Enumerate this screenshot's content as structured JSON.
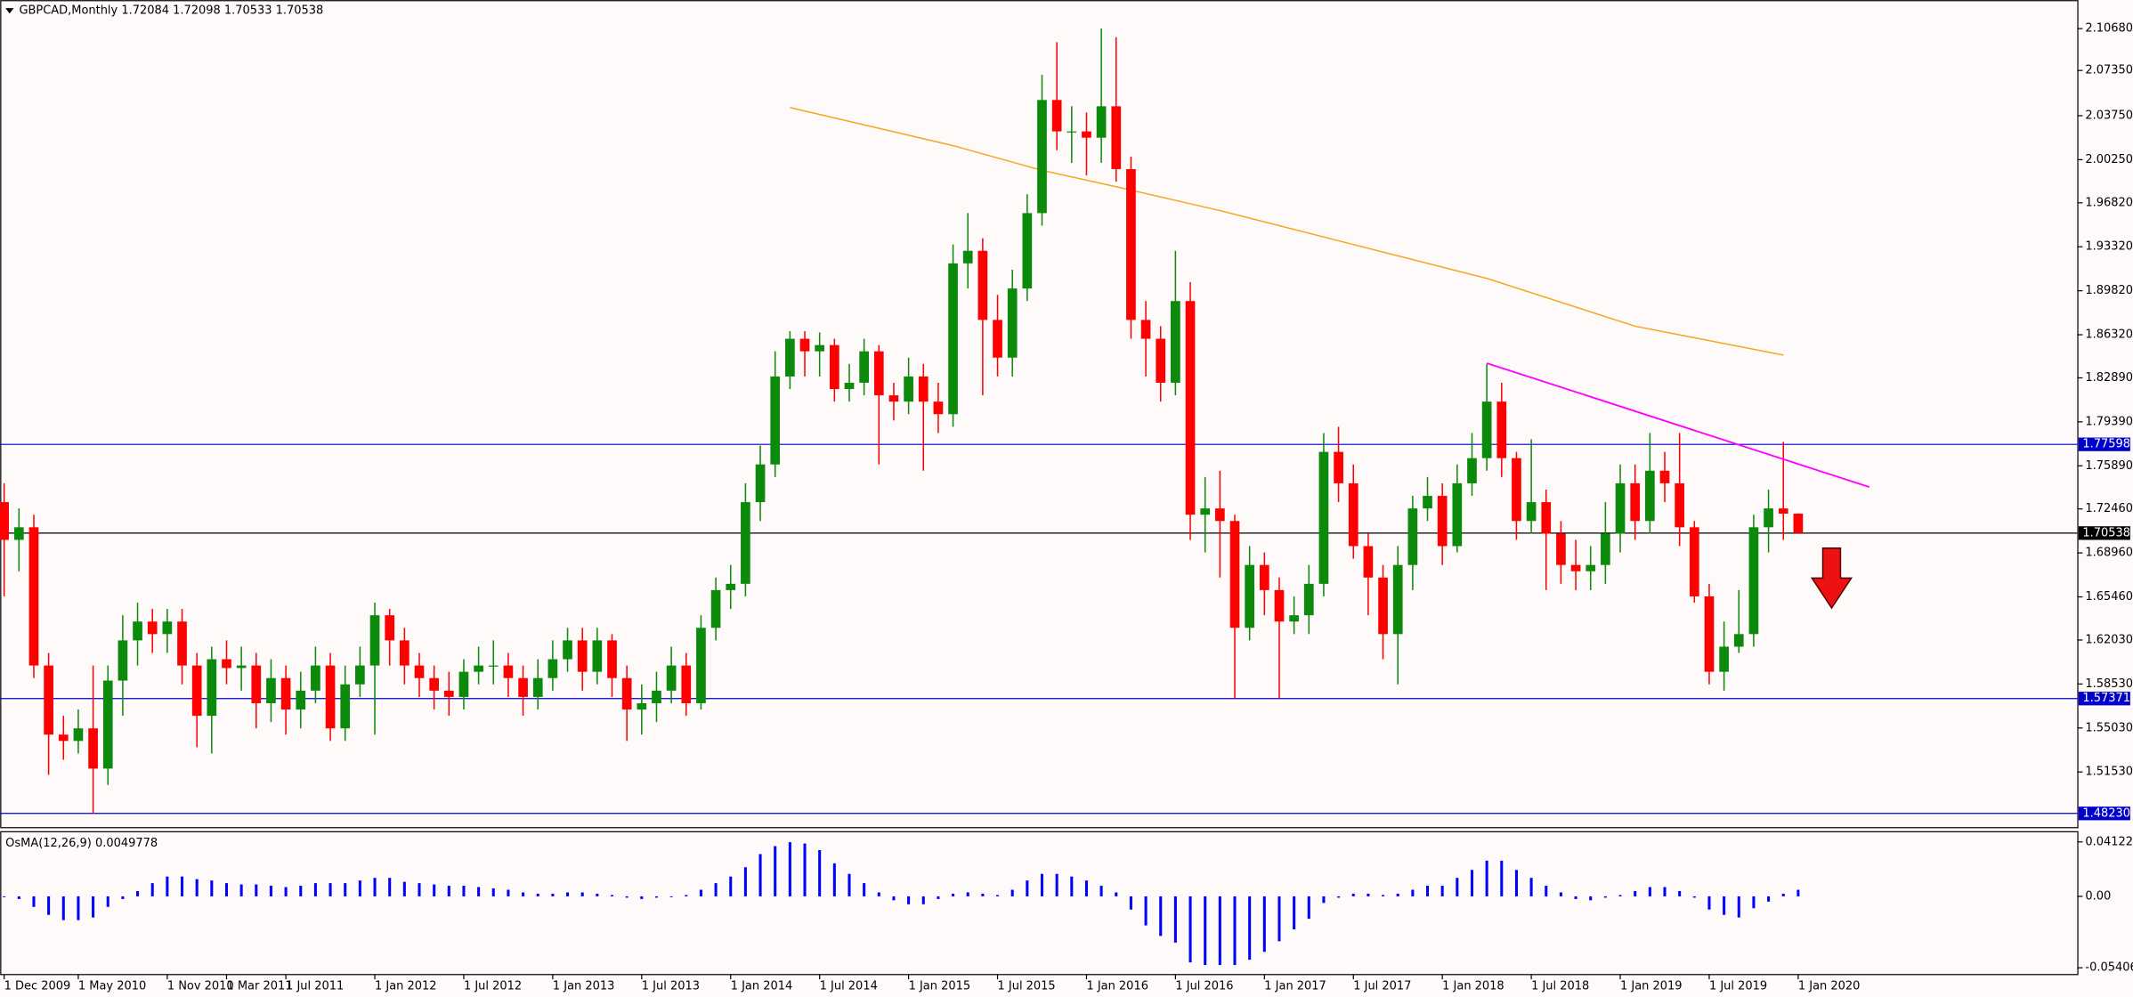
{
  "chart_data": [
    {
      "type": "candlestick",
      "title": "GBPCAD,Monthly 1.72084 1.72098 1.70533 1.70538",
      "up_color": "#0b8a0b",
      "down_color": "#ff0000",
      "categories": [
        "1 Dec 2009",
        null,
        null,
        null,
        null,
        "1 May 2010",
        null,
        null,
        null,
        null,
        null,
        "1 Nov 2010",
        null,
        null,
        null,
        "1 Mar 2011",
        null,
        null,
        null,
        "1 Jul 2011",
        null,
        null,
        null,
        null,
        null,
        "1 Jan 2012",
        null,
        null,
        null,
        null,
        null,
        "1 Jul 2012",
        null,
        null,
        null,
        null,
        null,
        "1 Jan 2013",
        null,
        null,
        null,
        null,
        null,
        "1 Jul 2013",
        null,
        null,
        null,
        null,
        null,
        "1 Jan 2014",
        null,
        null,
        null,
        null,
        null,
        "1 Jul 2014",
        null,
        null,
        null,
        null,
        null,
        "1 Jan 2015",
        null,
        null,
        null,
        null,
        null,
        "1 Jul 2015",
        null,
        null,
        null,
        null,
        null,
        "1 Jan 2016",
        null,
        null,
        null,
        null,
        null,
        "1 Jul 2016",
        null,
        null,
        null,
        null,
        null,
        "1 Jan 2017",
        null,
        null,
        null,
        null,
        null,
        "1 Jul 2017",
        null,
        null,
        null,
        null,
        null,
        "1 Jan 2018",
        null,
        null,
        null,
        null,
        null,
        "1 Jul 2018",
        null,
        null,
        null,
        null,
        null,
        "1 Jan 2019",
        null,
        null,
        null,
        null,
        null,
        "1 Jul 2019",
        null,
        null,
        null,
        null,
        null,
        "1 Jan 2020"
      ],
      "open": [
        1.73,
        1.7,
        1.71,
        1.6,
        1.545,
        1.54,
        1.55,
        1.518,
        1.588,
        1.62,
        1.635,
        1.625,
        1.635,
        1.6,
        1.56,
        1.605,
        1.598,
        1.6,
        1.57,
        1.59,
        1.565,
        1.58,
        1.6,
        1.55,
        1.585,
        1.6,
        1.64,
        1.62,
        1.6,
        1.59,
        1.58,
        1.575,
        1.595,
        1.6,
        1.6,
        1.59,
        1.575,
        1.59,
        1.605,
        1.62,
        1.595,
        1.62,
        1.59,
        1.565,
        1.57,
        1.58,
        1.6,
        1.57,
        1.63,
        1.66,
        1.665,
        1.73,
        1.76,
        1.83,
        1.86,
        1.85,
        1.855,
        1.82,
        1.825,
        1.85,
        1.815,
        1.81,
        1.83,
        1.81,
        1.8,
        1.92,
        1.93,
        1.875,
        1.845,
        1.9,
        1.96,
        2.05,
        2.025,
        2.025,
        2.02,
        2.045,
        1.995,
        1.875,
        1.86,
        1.825,
        1.89,
        1.72,
        1.725,
        1.715,
        1.63,
        1.68,
        1.66,
        1.635,
        1.64,
        1.665,
        1.77,
        1.745,
        1.695,
        1.67,
        1.625,
        1.68,
        1.725,
        1.735,
        1.695,
        1.745,
        1.765,
        1.81,
        1.765,
        1.715,
        1.73,
        1.705,
        1.68,
        1.675,
        1.68,
        1.705,
        1.745,
        1.715,
        1.755,
        1.745,
        1.71,
        1.655,
        1.595,
        1.615,
        1.625,
        1.71,
        1.725,
        1.72084
      ],
      "high": [
        1.745,
        1.725,
        1.72,
        1.61,
        1.56,
        1.565,
        1.6,
        1.6,
        1.64,
        1.65,
        1.645,
        1.645,
        1.645,
        1.61,
        1.615,
        1.62,
        1.615,
        1.61,
        1.605,
        1.6,
        1.595,
        1.615,
        1.61,
        1.6,
        1.615,
        1.65,
        1.645,
        1.63,
        1.61,
        1.6,
        1.595,
        1.605,
        1.615,
        1.62,
        1.61,
        1.6,
        1.605,
        1.62,
        1.63,
        1.63,
        1.63,
        1.625,
        1.6,
        1.585,
        1.595,
        1.615,
        1.61,
        1.64,
        1.67,
        1.68,
        1.745,
        1.775,
        1.85,
        1.866,
        1.866,
        1.865,
        1.86,
        1.84,
        1.86,
        1.855,
        1.825,
        1.845,
        1.84,
        1.825,
        1.935,
        1.96,
        1.94,
        1.895,
        1.915,
        1.975,
        2.07,
        2.096,
        2.045,
        2.04,
        2.1068,
        2.1,
        2.005,
        1.89,
        1.87,
        1.93,
        1.905,
        1.75,
        1.755,
        1.72,
        1.695,
        1.69,
        1.67,
        1.655,
        1.68,
        1.785,
        1.79,
        1.76,
        1.705,
        1.68,
        1.695,
        1.735,
        1.75,
        1.745,
        1.76,
        1.785,
        1.84,
        1.825,
        1.77,
        1.78,
        1.74,
        1.715,
        1.7,
        1.695,
        1.73,
        1.76,
        1.76,
        1.785,
        1.77,
        1.785,
        1.715,
        1.665,
        1.635,
        1.66,
        1.72,
        1.74,
        1.778,
        1.72098
      ],
      "low": [
        1.655,
        1.675,
        1.59,
        1.513,
        1.525,
        1.53,
        1.4823,
        1.505,
        1.56,
        1.6,
        1.61,
        1.61,
        1.585,
        1.535,
        1.53,
        1.585,
        1.58,
        1.55,
        1.555,
        1.545,
        1.55,
        1.57,
        1.54,
        1.54,
        1.575,
        1.545,
        1.6,
        1.585,
        1.575,
        1.565,
        1.56,
        1.565,
        1.585,
        1.585,
        1.575,
        1.56,
        1.565,
        1.58,
        1.595,
        1.58,
        1.585,
        1.575,
        1.54,
        1.545,
        1.555,
        1.57,
        1.56,
        1.565,
        1.62,
        1.645,
        1.655,
        1.715,
        1.75,
        1.82,
        1.83,
        1.83,
        1.81,
        1.81,
        1.815,
        1.76,
        1.795,
        1.8,
        1.755,
        1.785,
        1.79,
        1.9,
        1.815,
        1.83,
        1.83,
        1.89,
        1.95,
        2.01,
        2.0,
        1.99,
        2.0,
        1.985,
        1.86,
        1.83,
        1.81,
        1.815,
        1.7,
        1.69,
        1.67,
        1.5737,
        1.62,
        1.64,
        1.5737,
        1.625,
        1.625,
        1.655,
        1.73,
        1.685,
        1.64,
        1.605,
        1.585,
        1.66,
        1.715,
        1.68,
        1.69,
        1.735,
        1.755,
        1.75,
        1.7,
        1.705,
        1.66,
        1.665,
        1.66,
        1.66,
        1.665,
        1.69,
        1.7,
        1.705,
        1.73,
        1.695,
        1.65,
        1.585,
        1.58,
        1.61,
        1.615,
        1.69,
        1.7,
        1.70533
      ],
      "close": [
        1.7,
        1.71,
        1.6,
        1.545,
        1.54,
        1.55,
        1.518,
        1.588,
        1.62,
        1.635,
        1.625,
        1.635,
        1.6,
        1.56,
        1.605,
        1.598,
        1.6,
        1.57,
        1.59,
        1.565,
        1.58,
        1.6,
        1.55,
        1.585,
        1.6,
        1.64,
        1.62,
        1.6,
        1.59,
        1.58,
        1.575,
        1.595,
        1.6,
        1.6,
        1.59,
        1.575,
        1.59,
        1.605,
        1.62,
        1.595,
        1.62,
        1.59,
        1.565,
        1.57,
        1.58,
        1.6,
        1.57,
        1.63,
        1.66,
        1.665,
        1.73,
        1.76,
        1.83,
        1.86,
        1.85,
        1.855,
        1.82,
        1.825,
        1.85,
        1.815,
        1.81,
        1.83,
        1.81,
        1.8,
        1.92,
        1.93,
        1.875,
        1.845,
        1.9,
        1.96,
        2.05,
        2.025,
        2.025,
        2.02,
        2.045,
        1.995,
        1.875,
        1.86,
        1.825,
        1.89,
        1.72,
        1.725,
        1.715,
        1.63,
        1.68,
        1.66,
        1.635,
        1.64,
        1.665,
        1.77,
        1.745,
        1.695,
        1.67,
        1.625,
        1.68,
        1.725,
        1.735,
        1.695,
        1.745,
        1.765,
        1.81,
        1.765,
        1.715,
        1.73,
        1.705,
        1.68,
        1.675,
        1.68,
        1.705,
        1.745,
        1.715,
        1.755,
        1.745,
        1.71,
        1.655,
        1.595,
        1.615,
        1.625,
        1.71,
        1.725,
        1.72084,
        1.70538
      ],
      "ylim": [
        1.4726,
        2.1274
      ],
      "yticks": [
        {
          "value": 2.1068,
          "label": "2.10680"
        },
        {
          "value": 2.0735,
          "label": "2.07350"
        },
        {
          "value": 2.0375,
          "label": "2.03750"
        },
        {
          "value": 2.0025,
          "label": "2.00250"
        },
        {
          "value": 1.9682,
          "label": "1.96820"
        },
        {
          "value": 1.9332,
          "label": "1.93320"
        },
        {
          "value": 1.8982,
          "label": "1.89820"
        },
        {
          "value": 1.8632,
          "label": "1.86320"
        },
        {
          "value": 1.8289,
          "label": "1.82890"
        },
        {
          "value": 1.7939,
          "label": "1.79390"
        },
        {
          "value": 1.7589,
          "label": "1.75890"
        },
        {
          "value": 1.7246,
          "label": "1.72460"
        },
        {
          "value": 1.6896,
          "label": "1.68960"
        },
        {
          "value": 1.6546,
          "label": "1.65460"
        },
        {
          "value": 1.6203,
          "label": "1.62030"
        },
        {
          "value": 1.5853,
          "label": "1.58530"
        },
        {
          "value": 1.5503,
          "label": "1.55030"
        },
        {
          "value": 1.5153,
          "label": "1.51530"
        }
      ],
      "hlines": [
        {
          "value": 1.77598,
          "label": "1.77598",
          "color": "#0000cd"
        },
        {
          "value": 1.70538,
          "label": "1.70538",
          "color": "#000000"
        },
        {
          "value": 1.57371,
          "label": "1.57371",
          "color": "#0000cd"
        },
        {
          "value": 1.4823,
          "label": "1.48230",
          "color": "#0000cd"
        }
      ],
      "trendline": {
        "color": "#ff00ff",
        "x_index": [
          100,
          125.8
        ],
        "values": [
          1.8406,
          1.742
        ]
      },
      "moving_average": {
        "color": "#f5a623",
        "x_index": [
          53,
          64,
          70,
          75,
          82,
          91,
          100,
          110,
          120
        ],
        "values": [
          2.044,
          2.0137,
          1.994,
          1.981,
          1.962,
          1.935,
          1.908,
          1.87,
          1.847
        ]
      }
    },
    {
      "type": "bar",
      "title": "OsMA(12,26,9) 0.0049778",
      "color": "#0000ff",
      "values": [
        0,
        -0.002,
        -0.008,
        -0.014,
        -0.018,
        -0.018,
        -0.016,
        -0.008,
        -0.002,
        0.004,
        0.01,
        0.015,
        0.015,
        0.013,
        0.012,
        0.01,
        0.009,
        0.009,
        0.008,
        0.007,
        0.008,
        0.01,
        0.01,
        0.01,
        0.012,
        0.014,
        0.014,
        0.011,
        0.01,
        0.009,
        0.008,
        0.008,
        0.007,
        0.006,
        0.005,
        0.003,
        0.002,
        0.002,
        0.003,
        0.003,
        0.002,
        0.001,
        -0.001,
        -0.002,
        -0.001,
        0,
        0.001,
        0.005,
        0.01,
        0.015,
        0.022,
        0.032,
        0.038,
        0.041,
        0.04,
        0.035,
        0.025,
        0.017,
        0.01,
        0.003,
        -0.003,
        -0.006,
        -0.006,
        -0.002,
        0.002,
        0.003,
        0.002,
        0.001,
        0.005,
        0.012,
        0.017,
        0.017,
        0.015,
        0.012,
        0.008,
        0.003,
        -0.01,
        -0.022,
        -0.03,
        -0.035,
        -0.05,
        -0.052,
        -0.052,
        -0.052,
        -0.048,
        -0.042,
        -0.034,
        -0.025,
        -0.017,
        -0.005,
        -0.001,
        0.002,
        0.002,
        0.001,
        0.002,
        0.005,
        0.008,
        0.008,
        0.014,
        0.02,
        0.027,
        0.027,
        0.02,
        0.014,
        0.008,
        0.003,
        -0.002,
        -0.003,
        -0.001,
        0.001,
        0.004,
        0.007,
        0.007,
        0.004,
        -0.001,
        -0.01,
        -0.014,
        -0.016,
        -0.009,
        -0.004,
        0.002,
        0.0049778
      ],
      "ylim": [
        -0.0587,
        0.0484
      ],
      "yticks": [
        0.0412237,
        {
          "value": 0,
          "label": "0.00"
        },
        -0.0540605
      ]
    }
  ]
}
